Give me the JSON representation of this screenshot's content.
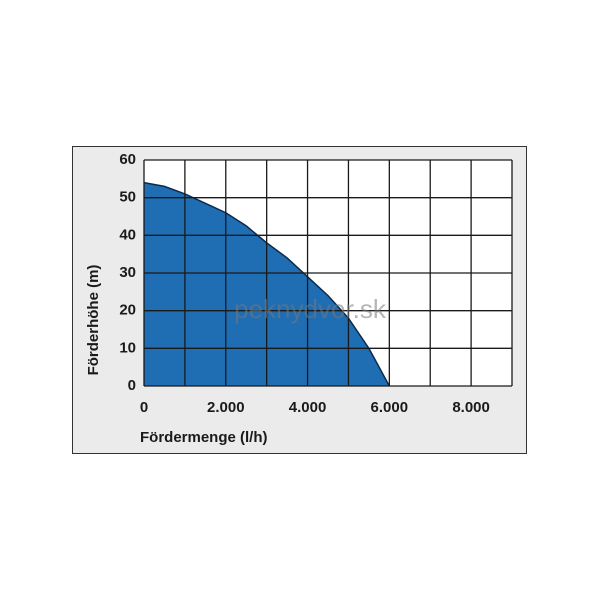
{
  "chart_data": {
    "type": "area",
    "x": [
      0,
      500,
      1000,
      1500,
      2000,
      2500,
      3000,
      3500,
      4000,
      4500,
      5000,
      5500,
      6000
    ],
    "values": [
      54,
      53,
      51,
      48.5,
      46,
      42.5,
      38,
      34,
      29,
      24,
      18,
      10,
      0
    ],
    "color": "#1f6db3",
    "line_color": "#0d2a4a",
    "xlabel": "Fördermenge (l/h)",
    "ylabel": "Förderhöhe (m)",
    "xlim": [
      0,
      9000
    ],
    "xticks": [
      0,
      {
        "value": 2000,
        "label": "2.000"
      },
      {
        "value": 4000,
        "label": "4.000"
      },
      {
        "value": 6000,
        "label": "6.000"
      },
      {
        "value": 8000,
        "label": "8.000"
      }
    ],
    "xgrid_minor": [
      1000,
      3000,
      5000,
      7000,
      9000
    ],
    "ylim": [
      0,
      60
    ],
    "yticks": [
      0,
      10,
      20,
      30,
      40,
      50,
      60
    ],
    "grid": true,
    "watermark": "peknydvor.sk"
  }
}
